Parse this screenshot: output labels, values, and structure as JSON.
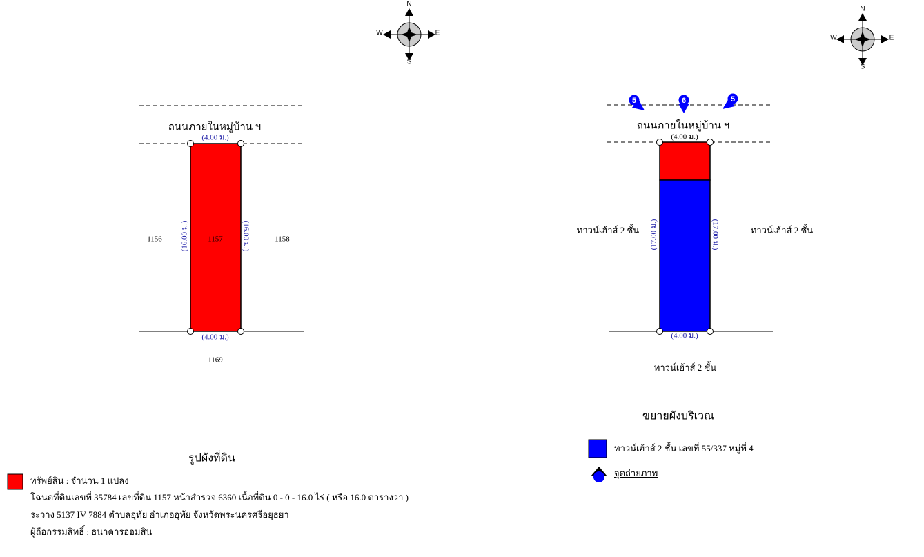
{
  "left_compass": [
    "N",
    "W",
    "E",
    "S"
  ],
  "right_compass": [
    "N",
    "W",
    "E",
    "S"
  ],
  "land_plan": {
    "road": "ถนนภายในหมู่บ้าน ฯ",
    "top_width": "(4.00 ม.)",
    "left_length": "(16.00 ม.)",
    "right_length": "(16.00 ม.)",
    "bottom_width": "(4.00 ม.)",
    "west_neighbor": "1156",
    "plot": "1157",
    "east_neighbor": "1158",
    "south_neighbor": "1169",
    "title": "รูปผังที่ดิน"
  },
  "site_plan": {
    "photo_points": [
      "5",
      "6",
      "5"
    ],
    "road": "ถนนภายในหมู่บ้าน ฯ",
    "top_width": "(4.00 ม.)",
    "left_length": "(17.00 ม.)",
    "right_length": "(17.00 ม.)",
    "bottom_width": "(4.00 ม.)",
    "west_neighbor": "ทาวน์เฮ้าส์ 2 ชั้น",
    "east_neighbor": "ทาวน์เฮ้าส์ 2 ชั้น",
    "south_neighbor": "ทาวน์เฮ้าส์ 2 ชั้น",
    "title": "ขยายผังบริเวณ",
    "legend_building": "ทาวน์เฮ้าส์ 2 ชั้น เลขที่ 55/337 หมู่ที่ 4",
    "legend_photo": "จุดถ่ายภาพ"
  },
  "property": {
    "count": "ทรัพย์สิน : จำนวน 1 แปลง",
    "deed": "โฉนดที่ดินเลขที่  35784  เลขที่ดิน  1157  หน้าสำรวจ  6360  เนื้อที่ดิน 0 - 0 - 16.0 ไร่ ( หรือ 16.0 ตารางวา )",
    "location": "ระวาง 5137 IV 7884  ตำบลอุทัย  อำเภออุทัย  จังหวัดพระนครศรีอยุธยา",
    "owner": "ผู้ถือกรรมสิทธิ์ :  ธนาคารออมสิน"
  }
}
